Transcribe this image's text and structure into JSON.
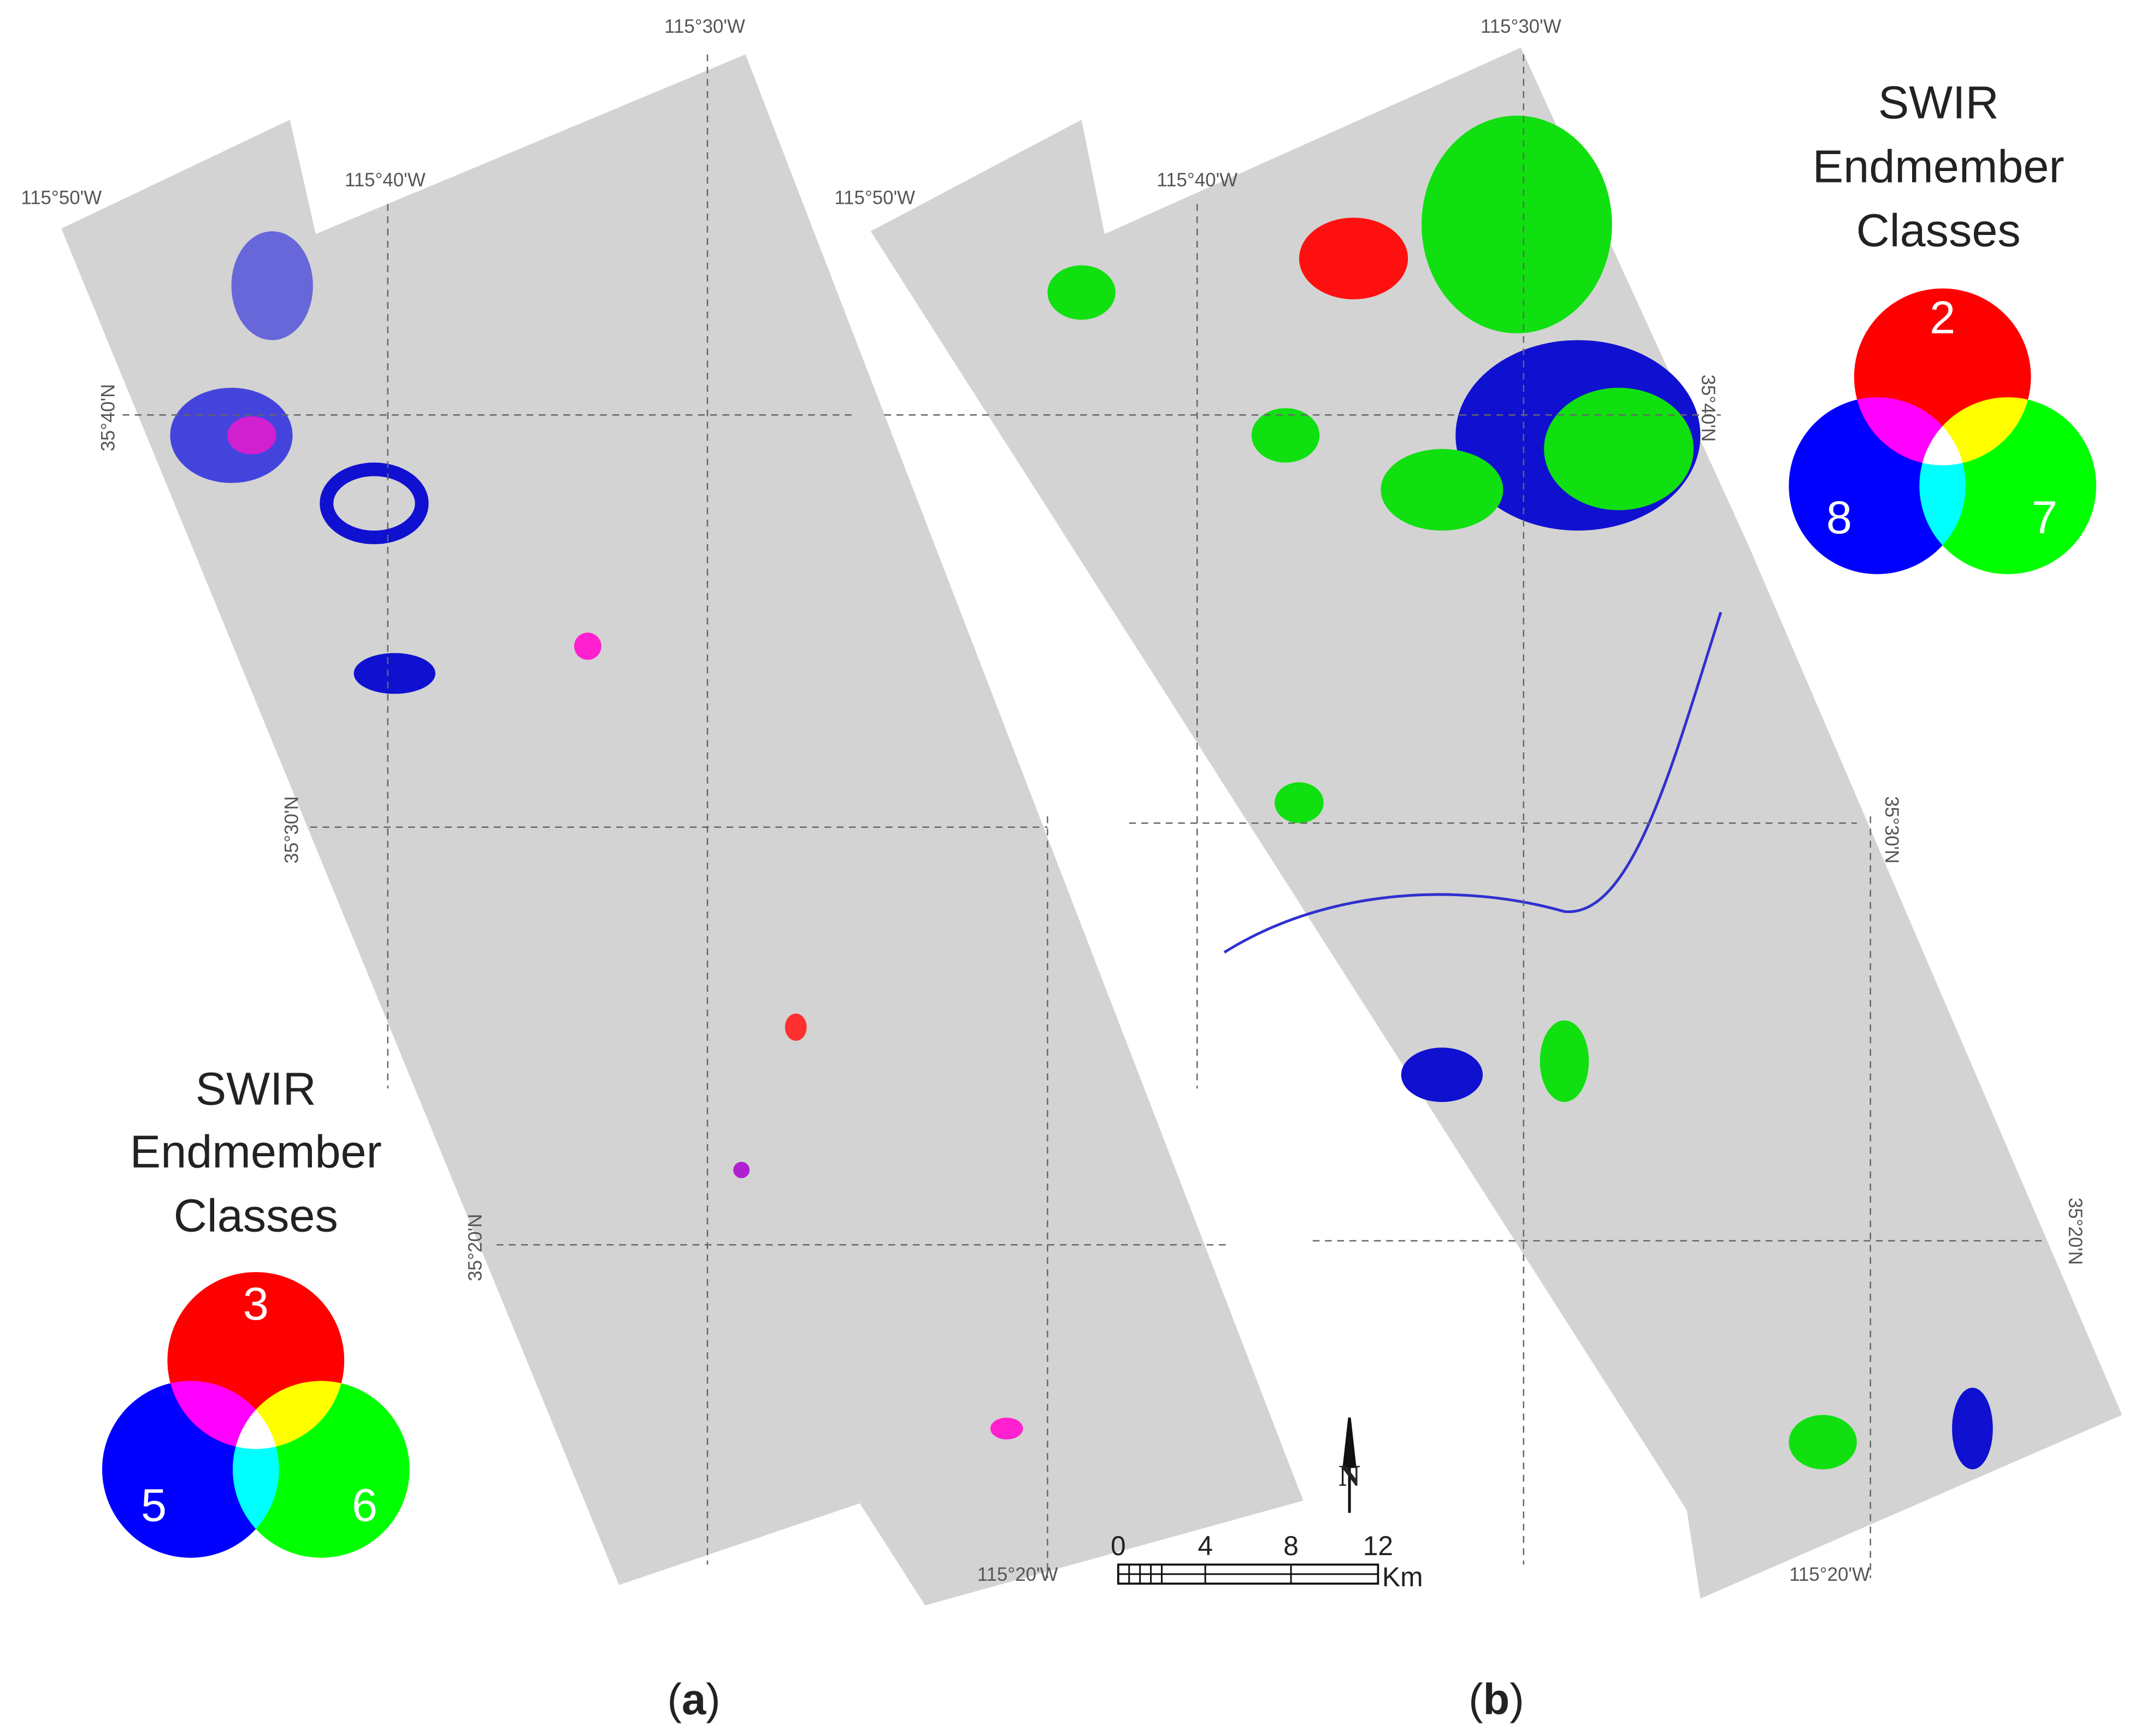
{
  "panels": [
    {
      "longitude_labels": [
        "115°50'W",
        "115°40'W",
        "115°30'W",
        "115°20'W"
      ],
      "latitude_labels": [
        "35°40'N",
        "35°30'N",
        "35°20'N"
      ],
      "legend": {
        "title": [
          "SWIR",
          "Endmember",
          "Classes"
        ],
        "classes": [
          "3",
          "5",
          "6"
        ]
      },
      "label": {
        "open": "(",
        "letter": "a",
        "close": ")"
      }
    },
    {
      "longitude_labels": [
        "115°50'W",
        "115°40'W",
        "115°30'W",
        "115°20'W"
      ],
      "latitude_labels": [
        "35°40'N",
        "35°30'N",
        "35°20'N"
      ],
      "legend": {
        "title": [
          "SWIR",
          "Endmember",
          "Classes"
        ],
        "classes": [
          "2",
          "8",
          "7"
        ]
      },
      "label": {
        "open": "(",
        "letter": "b",
        "close": ")"
      }
    }
  ],
  "north_arrow": "N",
  "scale_bar": {
    "ticks": [
      "0",
      "4",
      "8",
      "12"
    ],
    "unit": "Km"
  }
}
